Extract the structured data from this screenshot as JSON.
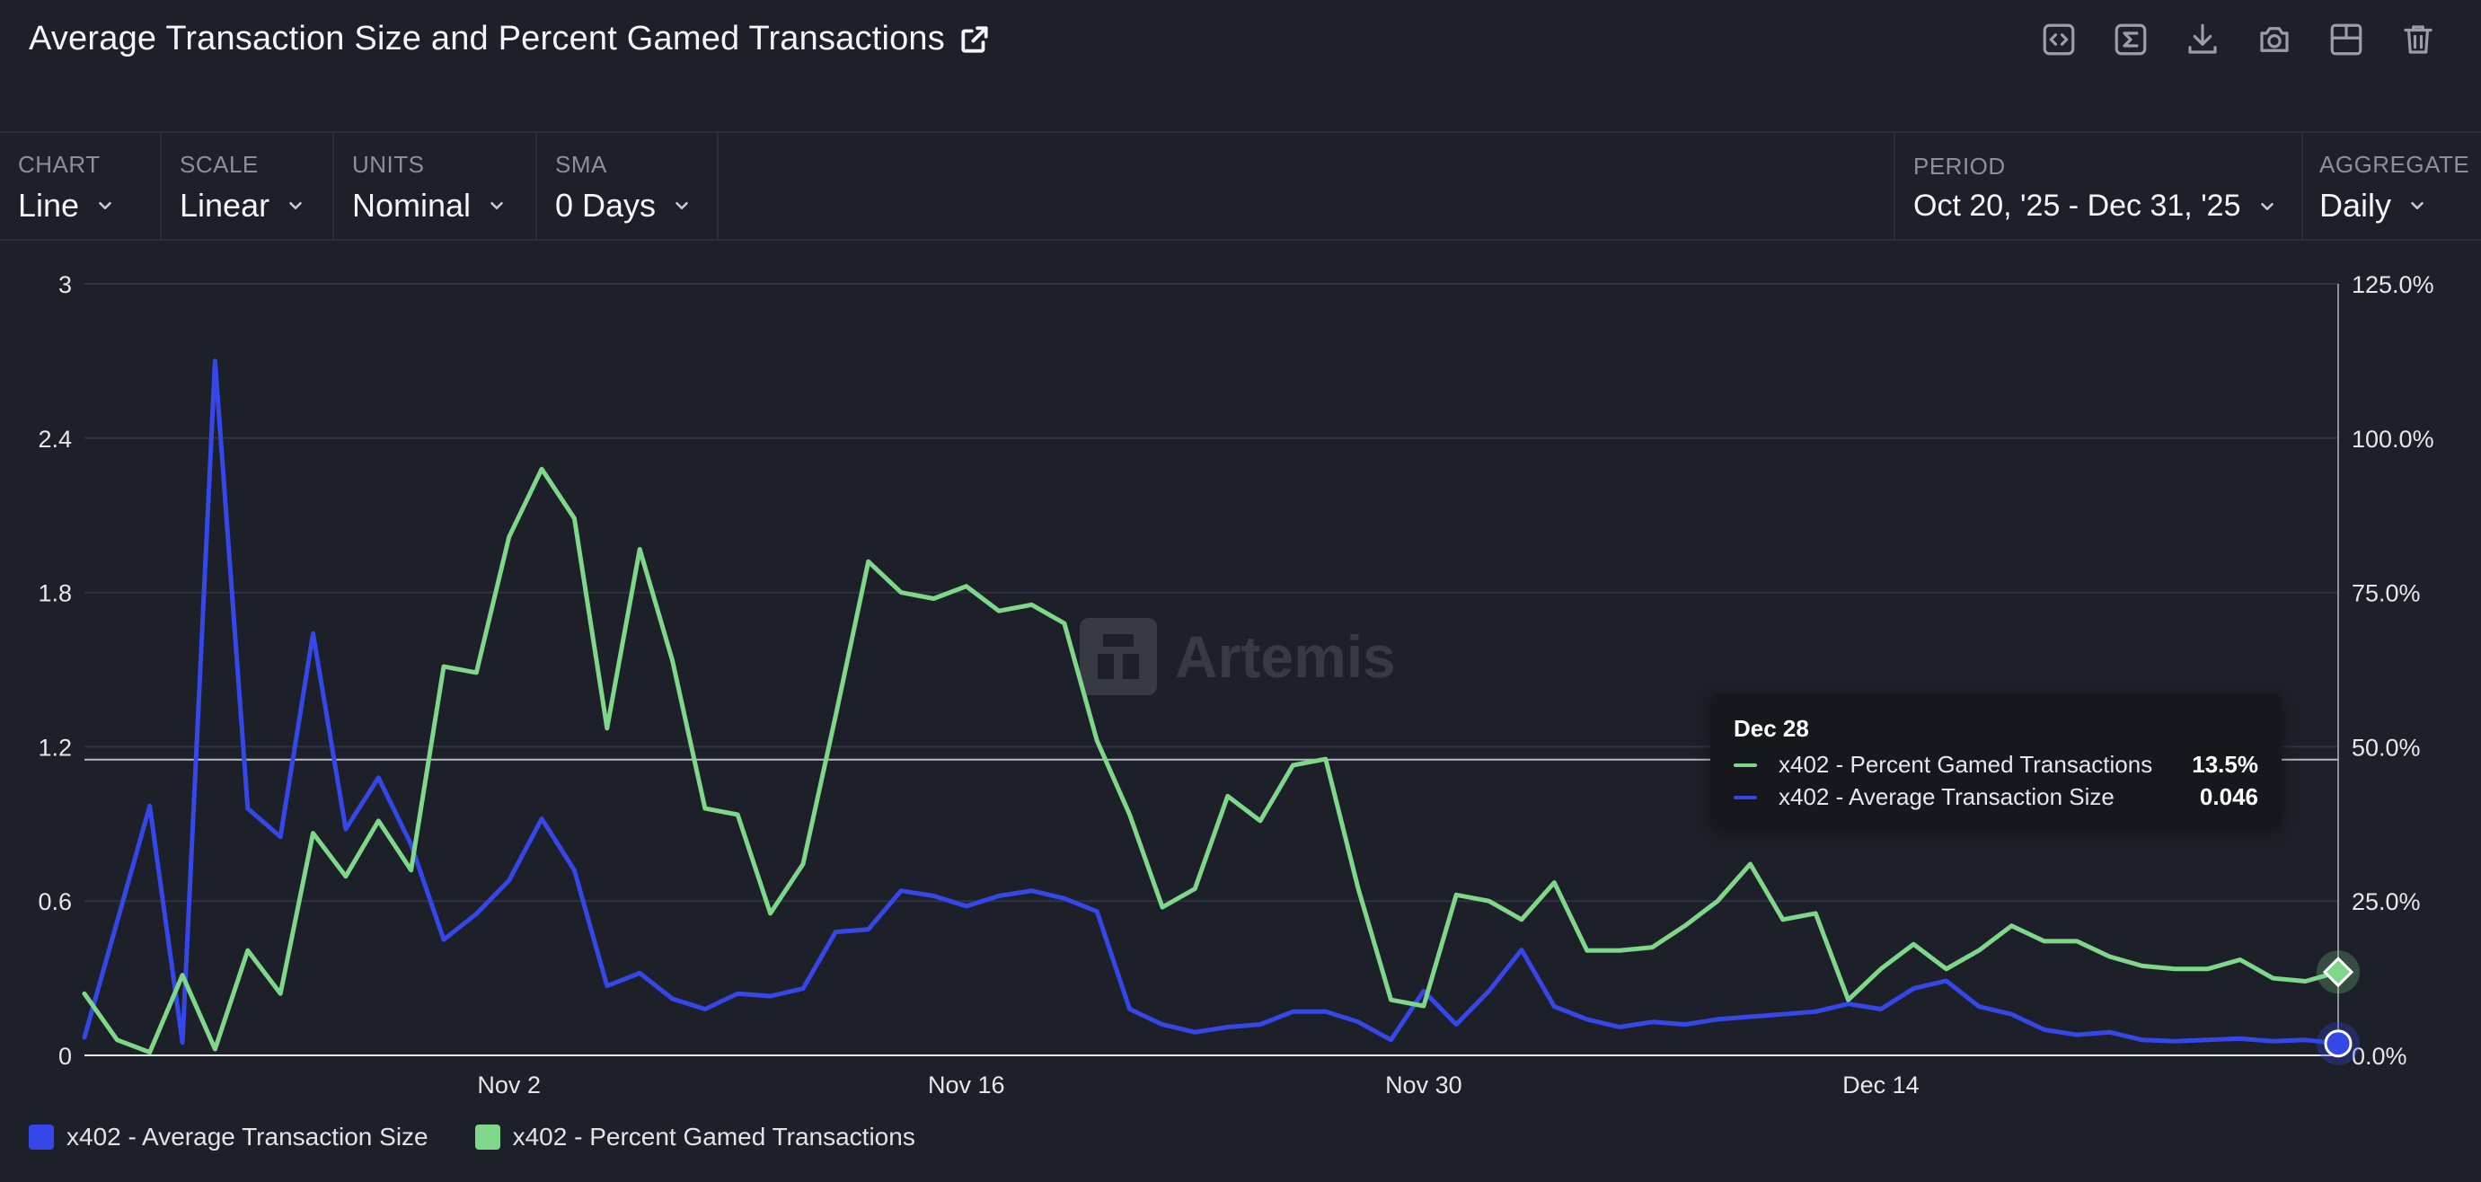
{
  "header": {
    "title": "Average Transaction Size and Percent Gamed Transactions",
    "icons": [
      "external-link-icon",
      "code-embed-icon",
      "sigma-icon",
      "download-icon",
      "camera-icon",
      "layout-icon",
      "trash-icon"
    ]
  },
  "controls": {
    "chart": {
      "label": "CHART",
      "value": "Line"
    },
    "scale": {
      "label": "SCALE",
      "value": "Linear"
    },
    "units": {
      "label": "UNITS",
      "value": "Nominal"
    },
    "sma": {
      "label": "SMA",
      "value": "0 Days"
    },
    "period": {
      "label": "PERIOD",
      "value": "Oct 20, '25 - Dec 31, '25"
    },
    "aggregate": {
      "label": "AGGREGATE",
      "value": "Daily"
    }
  },
  "watermark": {
    "text": "Artemis"
  },
  "tooltip": {
    "date": "Dec 28",
    "rows": [
      {
        "name": "x402 - Percent Gamed Transactions",
        "value": "13.5%"
      },
      {
        "name": "x402 - Average Transaction Size",
        "value": "0.046"
      }
    ]
  },
  "legend": [
    {
      "label": "x402 - Average Transaction Size"
    },
    {
      "label": "x402 - Percent Gamed Transactions"
    }
  ],
  "colors": {
    "avg_size": "#3547e8",
    "pct_gamed": "#7fd88a",
    "background": "#1e2029",
    "grid": "#2f3340"
  },
  "chart_data": {
    "type": "line",
    "title": "Average Transaction Size and Percent Gamed Transactions",
    "x_start": "2025-10-20",
    "x_end": "2025-12-28",
    "x_ticks": [
      "Nov 2",
      "Nov 16",
      "Nov 30",
      "Dec 14"
    ],
    "x_tick_day_index": [
      13,
      27,
      41,
      55
    ],
    "left_axis": {
      "ticks": [
        0,
        0.6,
        1.2,
        1.8,
        2.4,
        3
      ],
      "labels": [
        "0",
        "0.6",
        "1.2",
        "1.8",
        "2.4",
        "3"
      ],
      "ylim": [
        0,
        3
      ]
    },
    "right_axis": {
      "ticks": [
        0,
        25,
        50,
        75,
        100,
        125
      ],
      "labels": [
        "0.0%",
        "25.0%",
        "50.0%",
        "75.0%",
        "100.0%",
        "125.0%"
      ],
      "ylim": [
        0,
        125
      ]
    },
    "hover_y_left": 1.15,
    "series": [
      {
        "name": "x402 - Average Transaction Size",
        "axis": "left",
        "values": [
          0.07,
          0.52,
          0.97,
          0.05,
          2.7,
          0.96,
          0.85,
          1.64,
          0.88,
          1.08,
          0.82,
          0.45,
          0.55,
          0.68,
          0.92,
          0.72,
          0.27,
          0.32,
          0.22,
          0.18,
          0.24,
          0.23,
          0.26,
          0.48,
          0.49,
          0.64,
          0.62,
          0.58,
          0.62,
          0.64,
          0.61,
          0.56,
          0.18,
          0.12,
          0.09,
          0.11,
          0.12,
          0.17,
          0.17,
          0.13,
          0.06,
          0.25,
          0.12,
          0.25,
          0.41,
          0.19,
          0.14,
          0.11,
          0.13,
          0.12,
          0.14,
          0.15,
          0.16,
          0.17,
          0.2,
          0.18,
          0.26,
          0.29,
          0.19,
          0.16,
          0.1,
          0.08,
          0.09,
          0.06,
          0.055,
          0.06,
          0.065,
          0.055,
          0.06,
          0.046
        ]
      },
      {
        "name": "x402 - Percent Gamed Transactions",
        "axis": "right",
        "values": [
          10,
          2.5,
          0.5,
          13,
          1,
          17,
          10,
          36,
          29,
          38,
          30,
          63,
          62,
          84,
          95,
          87,
          53,
          82,
          64,
          40,
          39,
          23,
          31,
          55,
          80,
          75,
          74,
          76,
          72,
          73,
          70,
          51,
          39,
          24,
          27,
          42,
          38,
          47,
          48,
          27,
          9,
          8,
          26,
          25,
          22,
          28,
          17,
          17,
          17.5,
          21,
          25,
          31,
          22,
          23,
          9,
          14,
          18,
          14,
          17,
          21,
          18.5,
          18.5,
          16,
          14.5,
          14,
          14,
          15.5,
          12.5,
          12,
          13.5
        ]
      }
    ]
  }
}
